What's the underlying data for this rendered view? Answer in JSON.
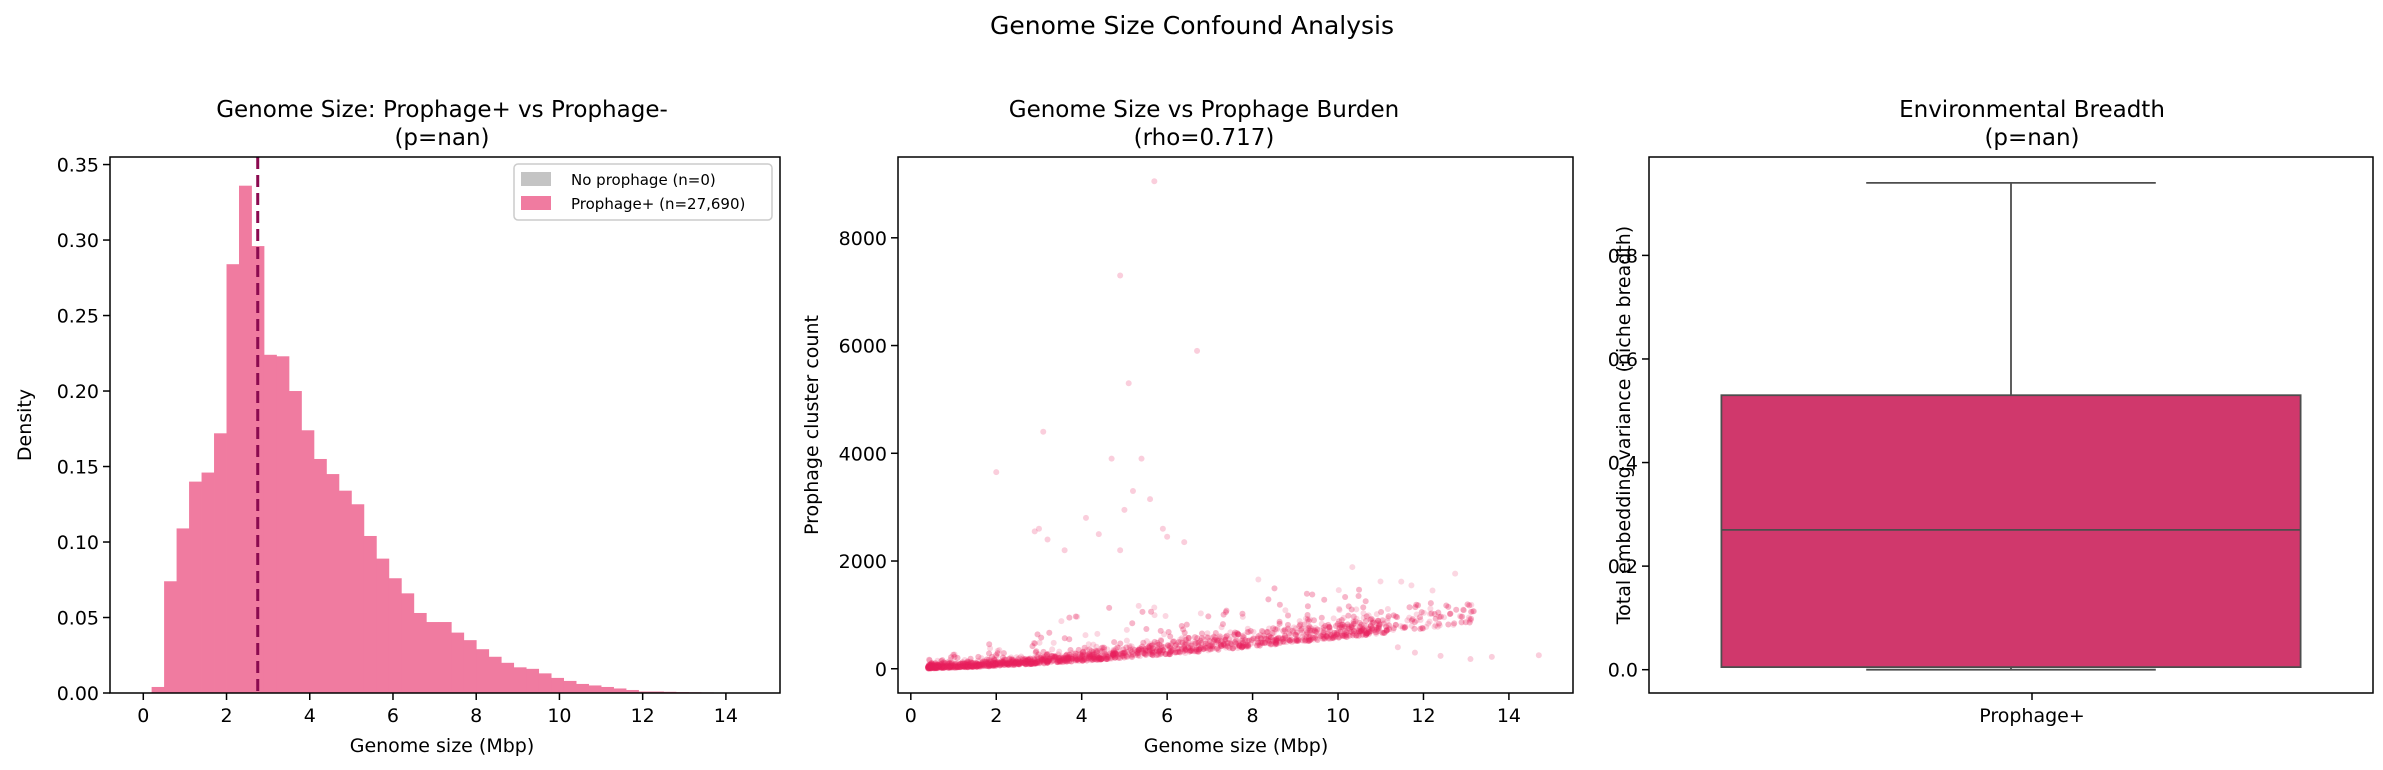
{
  "figure": {
    "suptitle": "Genome Size Confound Analysis"
  },
  "chart_data": [
    {
      "type": "bar",
      "title_line1": "Genome Size: Prophage+ vs Prophage-",
      "title_line2": "(p=nan)",
      "xlabel": "Genome size (Mbp)",
      "ylabel": "Density",
      "xlim": [
        -0.8,
        15.3
      ],
      "ylim": [
        0,
        0.355
      ],
      "x_ticks": [
        0,
        2,
        4,
        6,
        8,
        10,
        12,
        14
      ],
      "x_tick_labels": [
        "0",
        "2",
        "4",
        "6",
        "8",
        "10",
        "12",
        "14"
      ],
      "y_ticks": [
        0.0,
        0.05,
        0.1,
        0.15,
        0.2,
        0.25,
        0.3,
        0.35
      ],
      "y_tick_labels": [
        "0.00",
        "0.05",
        "0.10",
        "0.15",
        "0.20",
        "0.25",
        "0.30",
        "0.35"
      ],
      "bin_width": 0.3,
      "bin_start": 0.2,
      "densities": [
        0.004,
        0.074,
        0.109,
        0.14,
        0.146,
        0.172,
        0.284,
        0.336,
        0.296,
        0.224,
        0.223,
        0.2,
        0.174,
        0.155,
        0.145,
        0.134,
        0.125,
        0.104,
        0.089,
        0.076,
        0.066,
        0.053,
        0.047,
        0.047,
        0.04,
        0.035,
        0.029,
        0.024,
        0.02,
        0.017,
        0.016,
        0.013,
        0.01,
        0.008,
        0.006,
        0.005,
        0.004,
        0.003,
        0.002,
        0.001,
        0.001,
        0.0008,
        0.0006,
        0.0005,
        0.0004,
        0.0003,
        0.0002
      ],
      "median_line_x": 2.75,
      "median_line_color": "#8b0a50",
      "bar_color": "#f07ba0",
      "legend_position": "upper right",
      "legend": [
        {
          "label": "No prophage (n=0)",
          "color": "#c4c4c4"
        },
        {
          "label": "Prophage+ (n=27,690)",
          "color": "#f07ba0"
        }
      ]
    },
    {
      "type": "scatter",
      "title_line1": "Genome Size vs Prophage Burden",
      "title_line2": "(rho=0.717)",
      "xlabel": "Genome size (Mbp)",
      "ylabel": "Prophage cluster count",
      "xlim": [
        -0.3,
        15.5
      ],
      "ylim": [
        -450,
        9500
      ],
      "x_ticks": [
        0,
        2,
        4,
        6,
        8,
        10,
        12,
        14
      ],
      "x_tick_labels": [
        "0",
        "2",
        "4",
        "6",
        "8",
        "10",
        "12",
        "14"
      ],
      "y_ticks": [
        0,
        2000,
        4000,
        6000,
        8000
      ],
      "y_tick_labels": [
        "0",
        "2000",
        "4000",
        "6000",
        "8000"
      ],
      "point_color": "#e8215e",
      "n_points": 27690,
      "outliers": [
        [
          5.7,
          9050
        ],
        [
          4.9,
          7300
        ],
        [
          6.7,
          5900
        ],
        [
          5.1,
          5300
        ],
        [
          3.1,
          4400
        ],
        [
          4.7,
          3900
        ],
        [
          5.4,
          3900
        ],
        [
          2.0,
          3650
        ],
        [
          3.0,
          2600
        ],
        [
          2.9,
          2550
        ],
        [
          4.4,
          2500
        ],
        [
          6.0,
          2450
        ],
        [
          3.2,
          2400
        ],
        [
          5.2,
          3300
        ],
        [
          5.6,
          3150
        ],
        [
          5.0,
          2950
        ],
        [
          4.1,
          2800
        ],
        [
          5.9,
          2600
        ],
        [
          6.4,
          2350
        ],
        [
          3.6,
          2200
        ],
        [
          4.9,
          2200
        ],
        [
          14.7,
          250
        ],
        [
          13.6,
          220
        ],
        [
          12.4,
          240
        ],
        [
          13.1,
          180
        ],
        [
          11.8,
          300
        ],
        [
          11.4,
          400
        ]
      ]
    },
    {
      "type": "box",
      "title_line1": "Environmental Breadth",
      "title_line2": "(p=nan)",
      "xlabel": "",
      "ylabel": "Total embedding variance (niche breadth)",
      "ylim": [
        -0.045,
        0.99
      ],
      "y_ticks": [
        0.0,
        0.2,
        0.4,
        0.6,
        0.8
      ],
      "y_tick_labels": [
        "0.0",
        "0.2",
        "0.4",
        "0.6",
        "0.8"
      ],
      "categories": [
        "Prophage+"
      ],
      "box": {
        "whisker_low": 0.0,
        "q1": 0.005,
        "median": 0.27,
        "q3": 0.53,
        "whisker_high": 0.94
      },
      "box_color": "#d0386c"
    }
  ]
}
